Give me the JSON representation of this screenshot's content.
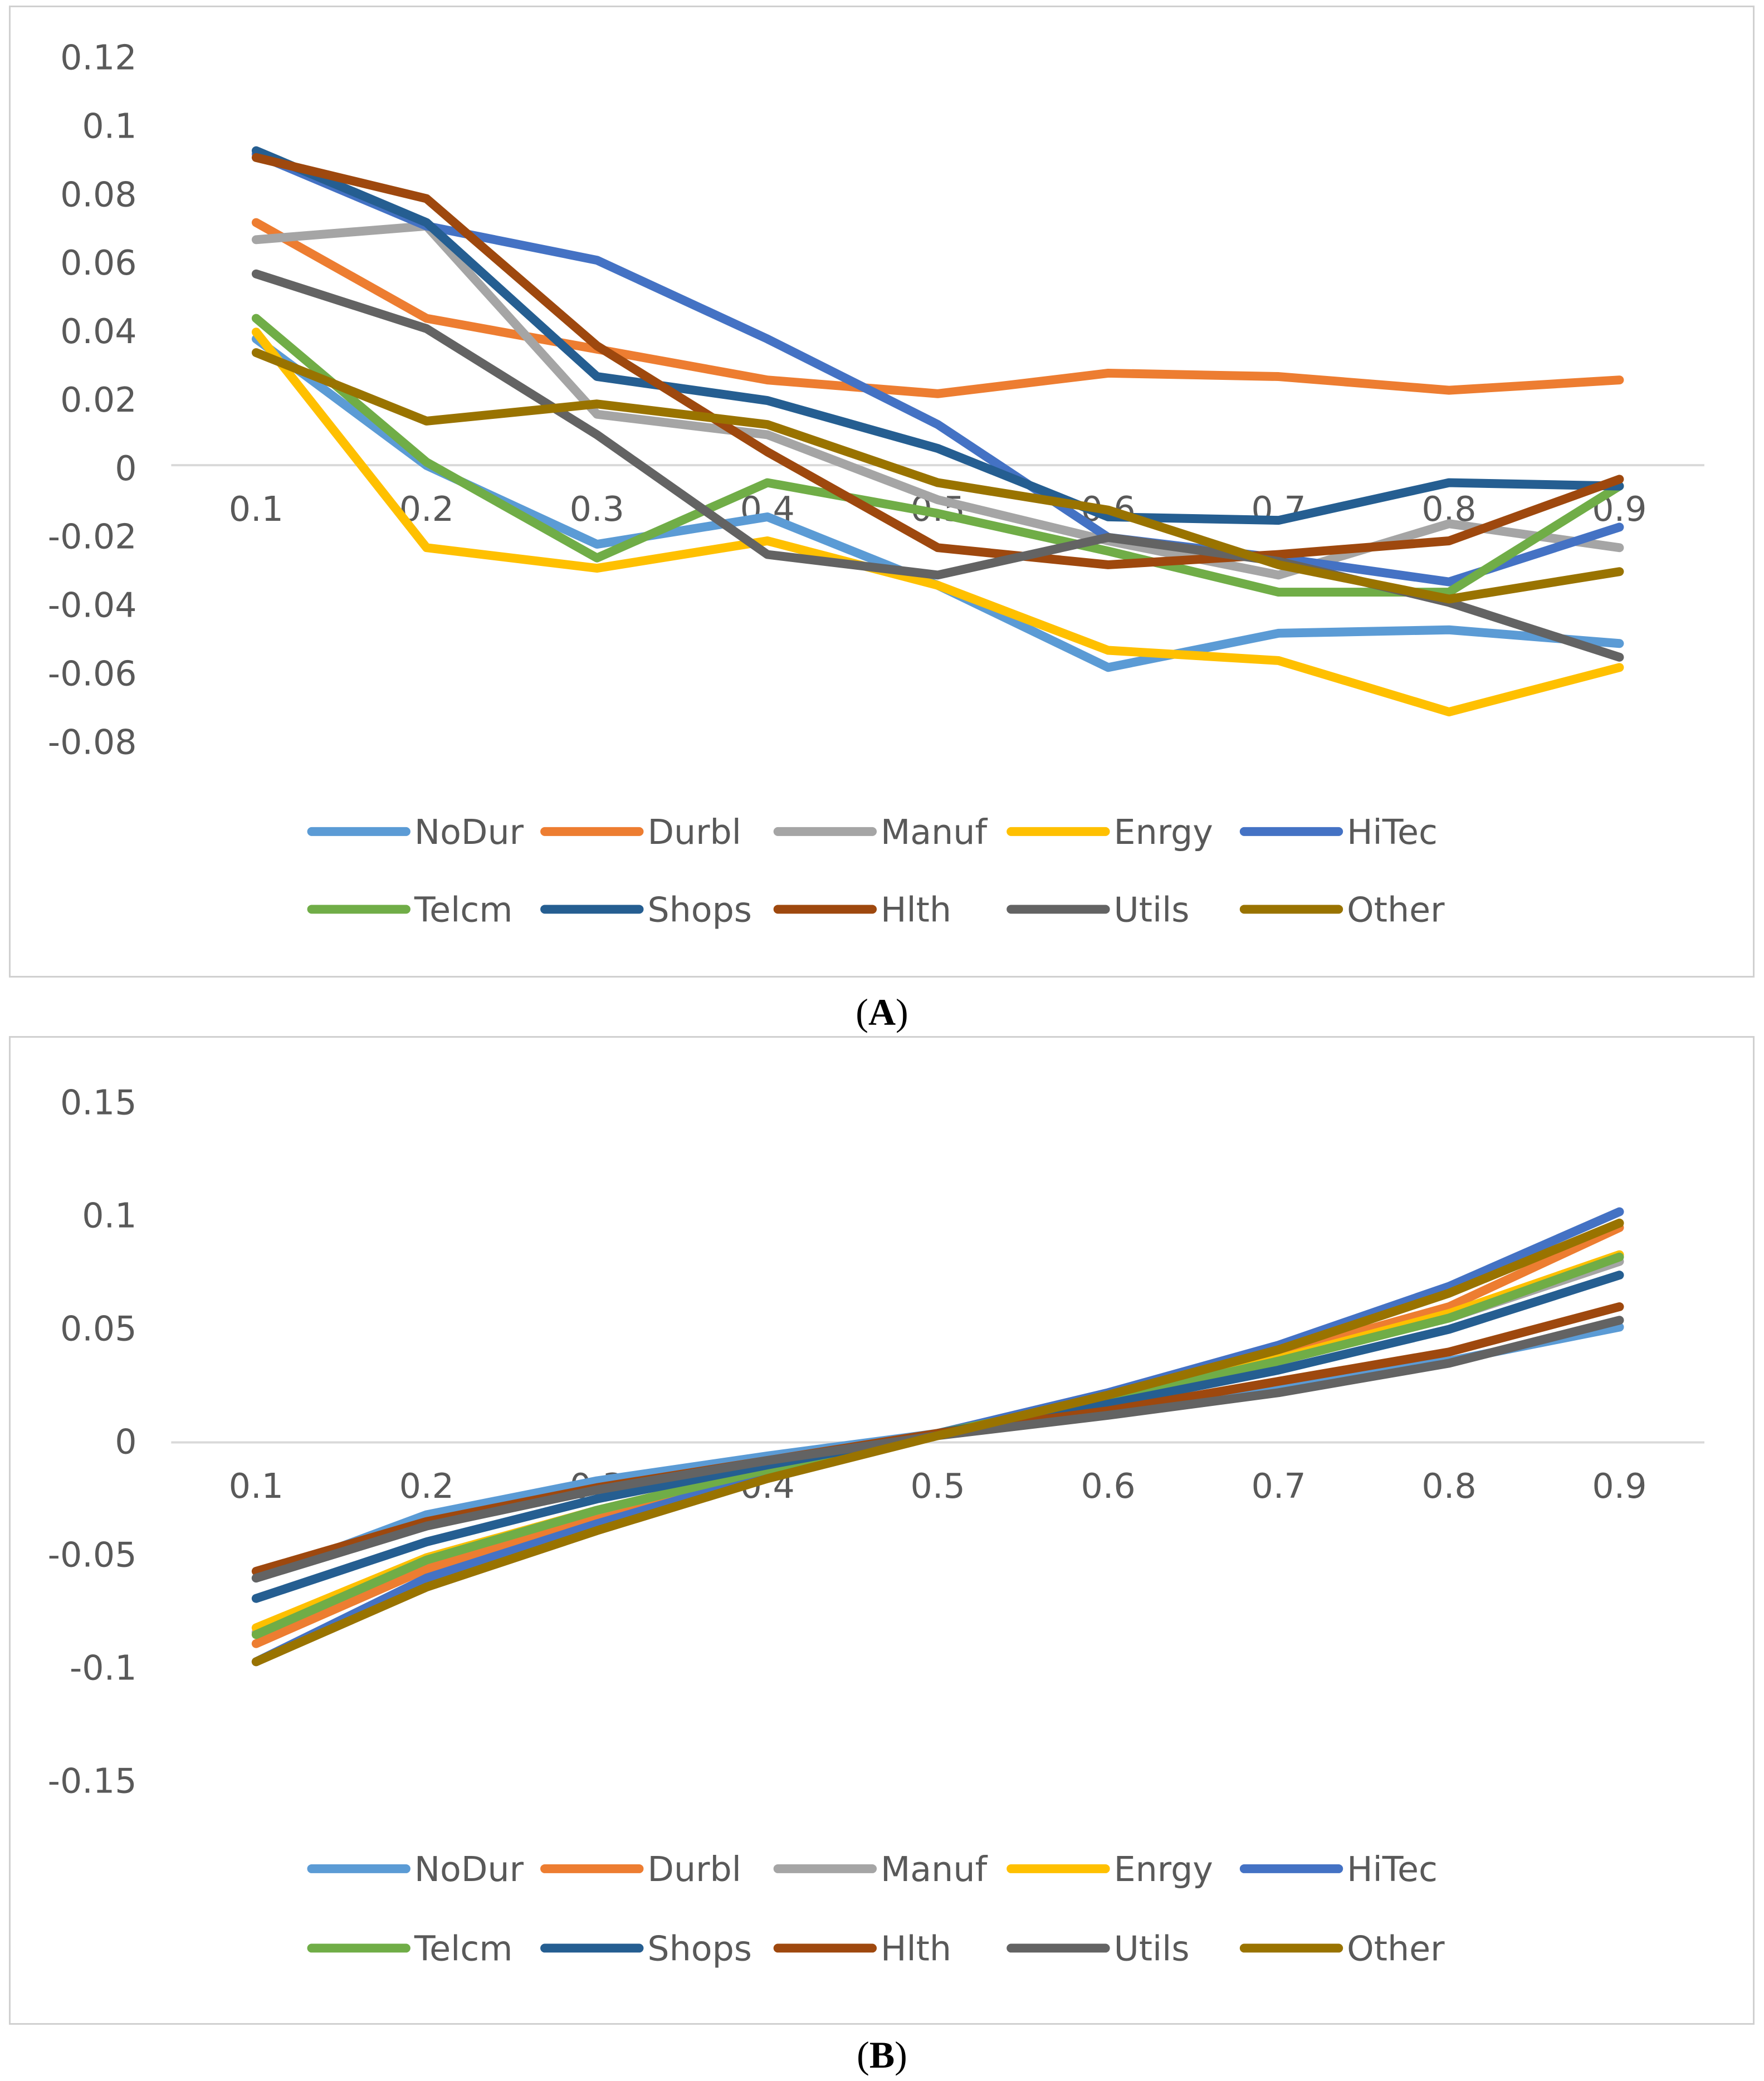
{
  "colors": {
    "NoDur": "#5b9bd5",
    "Durbl": "#ed7d31",
    "Manuf": "#a5a5a5",
    "Enrgy": "#ffc000",
    "HiTec": "#4472c4",
    "Telcm": "#70ad47",
    "Shops": "#255e91",
    "Hlth": "#9e480e",
    "Utils": "#636363",
    "Other": "#997300"
  },
  "chart_data": [
    {
      "id": "A",
      "type": "line",
      "caption": "A",
      "categories": [
        "0.1",
        "0.2",
        "0.3",
        "0.4",
        "0.5",
        "0.6",
        "0.7",
        "0.8",
        "0.9"
      ],
      "ylim": [
        -0.08,
        0.12
      ],
      "yticks": [
        "0.12",
        "0.1",
        "0.08",
        "0.06",
        "0.04",
        "0.02",
        "0",
        "-0.02",
        "-0.04",
        "-0.06",
        "-0.08"
      ],
      "ytick_values": [
        0.12,
        0.1,
        0.08,
        0.06,
        0.04,
        0.02,
        0,
        -0.02,
        -0.04,
        -0.06,
        -0.08
      ],
      "grid": false,
      "legend_position": "bottom",
      "series": [
        {
          "name": "NoDur",
          "values": [
            0.038,
            0.001,
            -0.022,
            -0.014,
            -0.034,
            -0.058,
            -0.048,
            -0.047,
            -0.051
          ]
        },
        {
          "name": "Durbl",
          "values": [
            0.072,
            0.044,
            0.035,
            0.026,
            0.022,
            0.028,
            0.027,
            0.023,
            0.026
          ]
        },
        {
          "name": "Manuf",
          "values": [
            0.067,
            0.071,
            0.016,
            0.01,
            -0.009,
            -0.021,
            -0.031,
            -0.016,
            -0.023
          ]
        },
        {
          "name": "Enrgy",
          "values": [
            0.04,
            -0.023,
            -0.029,
            -0.021,
            -0.034,
            -0.053,
            -0.056,
            -0.071,
            -0.058
          ]
        },
        {
          "name": "HiTec",
          "values": [
            0.092,
            0.071,
            0.061,
            0.038,
            0.013,
            -0.02,
            -0.026,
            -0.033,
            -0.017
          ]
        },
        {
          "name": "Telcm",
          "values": [
            0.044,
            0.002,
            -0.026,
            -0.004,
            -0.013,
            -0.024,
            -0.036,
            -0.036,
            -0.005
          ]
        },
        {
          "name": "Shops",
          "values": [
            0.093,
            0.072,
            0.027,
            0.02,
            0.006,
            -0.014,
            -0.015,
            -0.004,
            -0.005
          ]
        },
        {
          "name": "Hlth",
          "values": [
            0.091,
            0.079,
            0.036,
            0.005,
            -0.023,
            -0.028,
            -0.025,
            -0.021,
            -0.003
          ]
        },
        {
          "name": "Utils",
          "values": [
            0.057,
            0.041,
            0.01,
            -0.025,
            -0.031,
            -0.02,
            -0.027,
            -0.039,
            -0.055
          ]
        },
        {
          "name": "Other",
          "values": [
            0.034,
            0.014,
            0.019,
            0.013,
            -0.004,
            -0.012,
            -0.028,
            -0.038,
            -0.03
          ]
        }
      ]
    },
    {
      "id": "B",
      "type": "line",
      "caption": "B",
      "categories": [
        "0.1",
        "0.2",
        "0.3",
        "0.4",
        "0.5",
        "0.6",
        "0.7",
        "0.8",
        "0.9"
      ],
      "ylim": [
        -0.15,
        0.15
      ],
      "yticks": [
        "0.15",
        "0.1",
        "0.05",
        "0",
        "-0.05",
        "-0.1",
        "-0.15"
      ],
      "ytick_values": [
        0.15,
        0.1,
        0.05,
        0,
        -0.05,
        -0.1,
        -0.15
      ],
      "grid": false,
      "legend_position": "bottom",
      "series": [
        {
          "name": "NoDur",
          "values": [
            -0.06,
            -0.032,
            -0.017,
            -0.006,
            0.004,
            0.014,
            0.025,
            0.036,
            0.051
          ]
        },
        {
          "name": "Durbl",
          "values": [
            -0.089,
            -0.056,
            -0.034,
            -0.013,
            0.004,
            0.02,
            0.039,
            0.06,
            0.095
          ]
        },
        {
          "name": "Manuf",
          "values": [
            -0.084,
            -0.051,
            -0.03,
            -0.012,
            0.004,
            0.019,
            0.036,
            0.055,
            0.08
          ]
        },
        {
          "name": "Enrgy",
          "values": [
            -0.082,
            -0.051,
            -0.03,
            -0.012,
            0.004,
            0.02,
            0.037,
            0.057,
            0.083
          ]
        },
        {
          "name": "HiTec",
          "values": [
            -0.097,
            -0.06,
            -0.036,
            -0.014,
            0.004,
            0.022,
            0.043,
            0.069,
            0.102
          ]
        },
        {
          "name": "Telcm",
          "values": [
            -0.085,
            -0.052,
            -0.03,
            -0.012,
            0.004,
            0.019,
            0.036,
            0.055,
            0.082
          ]
        },
        {
          "name": "Shops",
          "values": [
            -0.069,
            -0.044,
            -0.025,
            -0.01,
            0.004,
            0.017,
            0.032,
            0.05,
            0.074
          ]
        },
        {
          "name": "Hlth",
          "values": [
            -0.057,
            -0.035,
            -0.02,
            -0.008,
            0.004,
            0.014,
            0.027,
            0.04,
            0.06
          ]
        },
        {
          "name": "Utils",
          "values": [
            -0.06,
            -0.037,
            -0.021,
            -0.008,
            0.003,
            0.012,
            0.022,
            0.035,
            0.054
          ]
        },
        {
          "name": "Other",
          "values": [
            -0.097,
            -0.064,
            -0.039,
            -0.016,
            0.003,
            0.021,
            0.041,
            0.066,
            0.097
          ]
        }
      ]
    }
  ]
}
